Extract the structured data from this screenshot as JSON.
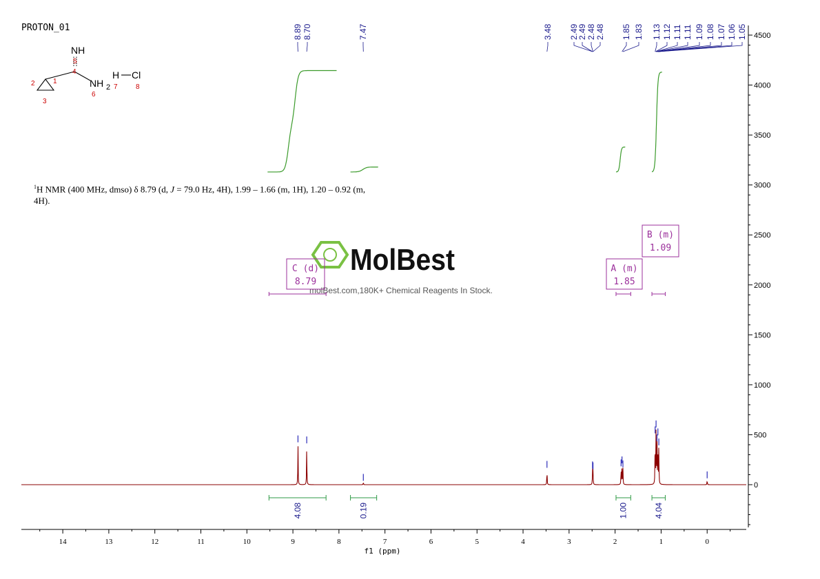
{
  "sample_name": "PROTON_01",
  "structure": {
    "atoms": [
      {
        "symbol": "NH",
        "number": "5"
      },
      {
        "symbol": "",
        "number": "4"
      },
      {
        "symbol": "",
        "number": "1"
      },
      {
        "symbol": "",
        "number": "2"
      },
      {
        "symbol": "",
        "number": "3"
      },
      {
        "symbol": "NH",
        "number": "6"
      },
      {
        "symbol": "2",
        "number": "7"
      },
      {
        "symbol": "H",
        "number": ""
      },
      {
        "symbol": "Cl",
        "number": "8"
      }
    ]
  },
  "description": {
    "sup": "1",
    "part1": "H NMR (400 MHz, dmso) δ 8.79 (d, ",
    "j": "J",
    "part2": " = 79.0 Hz, 4H), 1.99 – 1.66 (m, 1H), 1.20 – 0.92 (m,",
    "line2": "4H)."
  },
  "watermark": {
    "brand": "MolBest",
    "tagline": "molBest.com,180K+ Chemical Reagents In Stock."
  },
  "colors": {
    "spectrum": "#8b0000",
    "peak_marks": "#2b2bb8",
    "integral_curve": "#3a9a2a",
    "integral_bracket": "#2e9a44",
    "multiplet_box": "#9b2f9b",
    "axis": "#000000",
    "logo": "#7ac143"
  },
  "chart_data": {
    "type": "line",
    "xlabel": "f1 (ppm)",
    "xlim": [
      14.9,
      -0.85
    ],
    "x_ticks": [
      14,
      13,
      12,
      11,
      10,
      9,
      8,
      7,
      6,
      5,
      4,
      3,
      2,
      1,
      0
    ],
    "ylim": [
      -420,
      4600
    ],
    "y_ticks": [
      0,
      500,
      1000,
      1500,
      2000,
      2500,
      3000,
      3500,
      4000,
      4500
    ],
    "y_axis_side": "right",
    "peaks": [
      {
        "ppm": 8.89,
        "height": 410
      },
      {
        "ppm": 8.7,
        "height": 400
      },
      {
        "ppm": 7.47,
        "height": 25
      },
      {
        "ppm": 3.48,
        "height": 155
      },
      {
        "ppm": 2.49,
        "height": 150
      },
      {
        "ppm": 2.48,
        "height": 140
      },
      {
        "ppm": 1.87,
        "height": 170
      },
      {
        "ppm": 1.85,
        "height": 200
      },
      {
        "ppm": 1.83,
        "height": 160
      },
      {
        "ppm": 1.13,
        "height": 500
      },
      {
        "ppm": 1.11,
        "height": 560
      },
      {
        "ppm": 1.09,
        "height": 420
      },
      {
        "ppm": 1.07,
        "height": 480
      },
      {
        "ppm": 1.05,
        "height": 380
      },
      {
        "ppm": 0.0,
        "height": 50
      }
    ],
    "peak_labels": [
      "8.89",
      "8.70",
      "7.47",
      "3.48",
      "2.49",
      "2.49",
      "2.48",
      "2.48",
      "1.85",
      "1.83",
      "1.13",
      "1.12",
      "1.11",
      "1.11",
      "1.09",
      "1.08",
      "1.07",
      "1.06",
      "1.05"
    ],
    "integrals": [
      {
        "from": 9.52,
        "to": 8.28,
        "value": "4.08",
        "curve_from": 9.55,
        "curve_to": 8.05,
        "y_start": 3130,
        "y_end": 4145,
        "y_mid": 3600
      },
      {
        "from": 7.75,
        "to": 7.18,
        "value": "0.19",
        "curve_from": 7.75,
        "curve_to": 7.15,
        "y_start": 3130,
        "y_end": 3180
      },
      {
        "from": 1.98,
        "to": 1.66,
        "value": "1.00",
        "curve_from": 1.98,
        "curve_to": 1.78,
        "y_start": 3130,
        "y_end": 3380
      },
      {
        "from": 1.2,
        "to": 0.91,
        "value": "4.04",
        "curve_from": 1.2,
        "curve_to": 0.98,
        "y_start": 3130,
        "y_end": 4130
      }
    ],
    "multiplets": [
      {
        "label": "C (d)",
        "shift": "8.79",
        "range": [
          9.52,
          8.28
        ]
      },
      {
        "label": "A (m)",
        "shift": "1.85",
        "range": [
          1.98,
          1.66
        ]
      },
      {
        "label": "B (m)",
        "shift": "1.09",
        "range": [
          1.2,
          0.91
        ]
      }
    ]
  }
}
